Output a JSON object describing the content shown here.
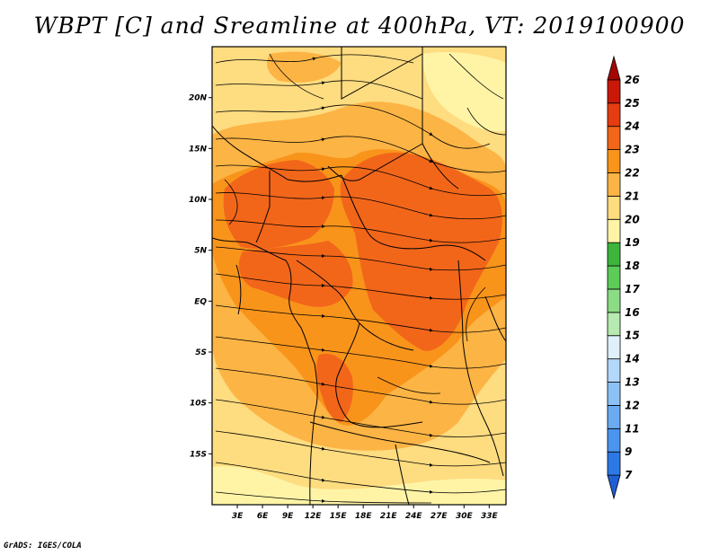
{
  "title": "WBPT [C] and Sreamline at 400hPa, VT: 2019100900",
  "footer": "GrADS: IGES/COLA",
  "map": {
    "lon_range": [
      0,
      35
    ],
    "lat_range": [
      -20,
      25
    ],
    "lat_ticks": [
      {
        "value": 20,
        "label": "20N"
      },
      {
        "value": 15,
        "label": "15N"
      },
      {
        "value": 10,
        "label": "10N"
      },
      {
        "value": 5,
        "label": "5N"
      },
      {
        "value": 0,
        "label": "EQ"
      },
      {
        "value": -5,
        "label": "5S"
      },
      {
        "value": -10,
        "label": "10S"
      },
      {
        "value": -15,
        "label": "15S"
      }
    ],
    "lon_ticks": [
      {
        "value": 3,
        "label": "3E"
      },
      {
        "value": 6,
        "label": "6E"
      },
      {
        "value": 9,
        "label": "9E"
      },
      {
        "value": 12,
        "label": "12E"
      },
      {
        "value": 15,
        "label": "15E"
      },
      {
        "value": 18,
        "label": "18E"
      },
      {
        "value": 21,
        "label": "21E"
      },
      {
        "value": 24,
        "label": "24E"
      },
      {
        "value": 27,
        "label": "27E"
      },
      {
        "value": 30,
        "label": "30E"
      },
      {
        "value": 33,
        "label": "33E"
      }
    ]
  },
  "colorbar": {
    "labels": [
      "7",
      "9",
      "11",
      "12",
      "13",
      "14",
      "15",
      "16",
      "17",
      "18",
      "19",
      "20",
      "21",
      "22",
      "23",
      "24",
      "25",
      "26"
    ],
    "colors": [
      "#1f5fd6",
      "#2c79e6",
      "#4c95ee",
      "#6aabf2",
      "#8cc1f6",
      "#b3d8fa",
      "#dff0fb",
      "#b6eab0",
      "#8cdc86",
      "#5ccb58",
      "#3cb53a",
      "#fff4a6",
      "#fedc80",
      "#fcb445",
      "#f9941b",
      "#f2661a",
      "#e63c12",
      "#c91808",
      "#a40604"
    ]
  },
  "colors": {
    "c19": "#fff4a6",
    "c20": "#fedc80",
    "c21": "#fcb445",
    "c22": "#f9941b",
    "c23": "#f2661a",
    "border": "#000000"
  }
}
